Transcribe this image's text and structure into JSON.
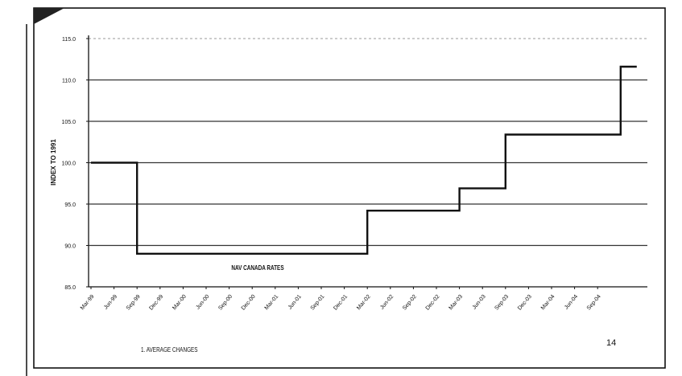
{
  "chart_data": {
    "type": "line",
    "step": true,
    "title": "",
    "xlabel": "",
    "ylabel": "INDEX TO 1991",
    "ylim": [
      85.0,
      115.0
    ],
    "y_ticks": [
      "115.0",
      "110.0",
      "105.0",
      "100.0",
      "95.0",
      "90.0",
      "85.0"
    ],
    "y_tick_values": [
      115,
      110,
      105,
      100,
      95,
      90,
      85
    ],
    "categories": [
      "Mar-99",
      "Jun-99",
      "Sep-99",
      "Dec-99",
      "Mar-00",
      "Jun-00",
      "Sep-00",
      "Dec-00",
      "Mar-01",
      "Jun-01",
      "Sep-01",
      "Dec-01",
      "Mar-02",
      "Jun-02",
      "Sep-02",
      "Dec-02",
      "Mar-03",
      "Jun-03",
      "Sep-03",
      "Dec-03",
      "Mar-04",
      "Jun-04",
      "Sep-04"
    ],
    "grid": "horizontal",
    "series": [
      {
        "name": "NAV CANADA RATES",
        "points": [
          {
            "x": 0,
            "y": 100.0
          },
          {
            "x": 2,
            "y": 100.0
          },
          {
            "x": 2,
            "y": 89.0
          },
          {
            "x": 12,
            "y": 89.0
          },
          {
            "x": 12,
            "y": 94.2
          },
          {
            "x": 16,
            "y": 94.2
          },
          {
            "x": 16,
            "y": 96.9
          },
          {
            "x": 18,
            "y": 96.9
          },
          {
            "x": 18,
            "y": 103.4
          },
          {
            "x": 23,
            "y": 103.4
          },
          {
            "x": 23,
            "y": 111.6
          },
          {
            "x": 23.7,
            "y": 111.6
          }
        ]
      }
    ],
    "footnote": "1. AVERAGE CHANGES",
    "page_number": "14"
  },
  "colors": {
    "ink": "#111111",
    "grid": "#333333",
    "corner": "#222222"
  }
}
